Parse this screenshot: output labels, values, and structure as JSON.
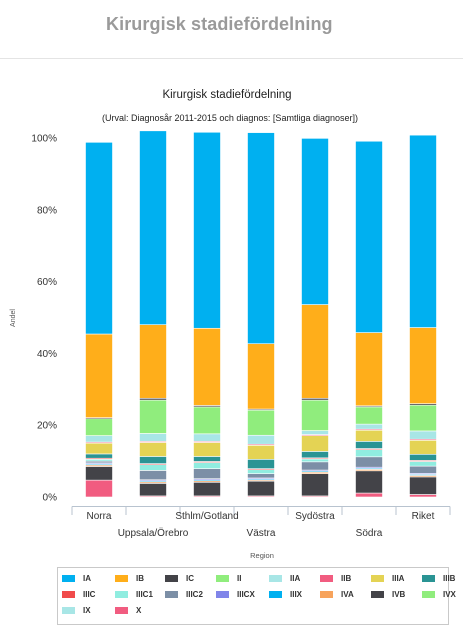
{
  "page": {
    "title": "Kirurgisk stadiefördelning"
  },
  "chart_data": {
    "type": "bar",
    "stacked": true,
    "title": "Kirurgisk stadiefördelning",
    "subtitle": "(Urval: Diagnosår 2011-2015 och diagnos: [Samtliga diagnoser])",
    "xlabel": "Region",
    "ylabel": "Andel",
    "ylim": [
      0,
      100
    ],
    "yticks": [
      "0%",
      "20%",
      "40%",
      "60%",
      "80%",
      "100%"
    ],
    "grid": false,
    "legend_position": "bottom",
    "categories": [
      "Norra",
      "Uppsala/Örebro",
      "Sthlm/Gotland",
      "Västra",
      "Sydöstra",
      "Södra",
      "Riket"
    ],
    "series": [
      {
        "name": "X",
        "color": "#f15c80",
        "values": [
          4.7,
          0.3,
          0.3,
          0.3,
          0.3,
          1.1,
          0.7
        ]
      },
      {
        "name": "IVB",
        "color": "#434348",
        "values": [
          3.8,
          3.5,
          3.8,
          4.1,
          6.2,
          6.2,
          4.9
        ]
      },
      {
        "name": "IVA",
        "color": "#f7a35c",
        "values": [
          0.4,
          0.4,
          0.4,
          0.3,
          0.4,
          0.4,
          0.4
        ]
      },
      {
        "name": "IIIX",
        "color": "#00b0f0",
        "values": [
          0.3,
          0.3,
          0.3,
          0.3,
          0.3,
          0.3,
          0.3
        ]
      },
      {
        "name": "IIICX",
        "color": "#8085e9",
        "values": [
          0.3,
          0.3,
          0.3,
          0.3,
          0.3,
          0.3,
          0.3
        ]
      },
      {
        "name": "IIIC2",
        "color": "#7c8fa6",
        "values": [
          0.5,
          2.6,
          2.8,
          1.2,
          2.3,
          2.9,
          2.0
        ]
      },
      {
        "name": "IIIC1",
        "color": "#90ede0",
        "values": [
          0.5,
          1.6,
          1.7,
          1.1,
          0.8,
          2.0,
          1.3
        ]
      },
      {
        "name": "IIIC",
        "color": "#f04b4b",
        "values": [
          0.3,
          0.3,
          0.3,
          0.3,
          0.3,
          0.3,
          0.3
        ]
      },
      {
        "name": "IIIB",
        "color": "#2a9494",
        "values": [
          1.2,
          2.0,
          1.4,
          2.6,
          1.8,
          2.0,
          1.7
        ]
      },
      {
        "name": "IIIA",
        "color": "#e4d354",
        "values": [
          3.0,
          3.9,
          3.9,
          3.9,
          4.4,
          3.1,
          3.9
        ]
      },
      {
        "name": "IIB",
        "color": "#f15c80",
        "values": [
          0.3,
          0.3,
          0.3,
          0.3,
          0.3,
          0.3,
          0.3
        ]
      },
      {
        "name": "IIA",
        "color": "#a8e6e6",
        "values": [
          1.8,
          2.2,
          2.1,
          2.5,
          1.1,
          1.4,
          2.3
        ]
      },
      {
        "name": "II",
        "color": "#90ed7d",
        "values": [
          4.7,
          9.3,
          7.5,
          7.0,
          8.5,
          4.8,
          7.2
        ]
      },
      {
        "name": "IC",
        "color": "#434348",
        "values": [
          0.3,
          0.5,
          0.4,
          0.3,
          0.5,
          0.3,
          0.4
        ]
      },
      {
        "name": "IB",
        "color": "#ffae1a",
        "values": [
          23.3,
          20.5,
          21.5,
          18.2,
          26.1,
          20.4,
          21.2
        ]
      },
      {
        "name": "IA",
        "color": "#00b0f0",
        "values": [
          53.4,
          54.0,
          54.6,
          58.8,
          46.3,
          53.3,
          53.6
        ]
      }
    ]
  },
  "legend": {
    "items": [
      {
        "label": "IA",
        "color": "#00b0f0"
      },
      {
        "label": "IB",
        "color": "#ffae1a"
      },
      {
        "label": "IC",
        "color": "#434348"
      },
      {
        "label": "II",
        "color": "#90ed7d"
      },
      {
        "label": "IIA",
        "color": "#a8e6e6"
      },
      {
        "label": "IIB",
        "color": "#f15c80"
      },
      {
        "label": "IIIA",
        "color": "#e4d354"
      },
      {
        "label": "IIIB",
        "color": "#2a9494"
      },
      {
        "label": "IIIC",
        "color": "#f04b4b"
      },
      {
        "label": "IIIC1",
        "color": "#90ede0"
      },
      {
        "label": "IIIC2",
        "color": "#7c8fa6"
      },
      {
        "label": "IIICX",
        "color": "#8085e9"
      },
      {
        "label": "IIIX",
        "color": "#00b0f0"
      },
      {
        "label": "IVA",
        "color": "#f7a35c"
      },
      {
        "label": "IVB",
        "color": "#434348"
      },
      {
        "label": "IVX",
        "color": "#90ed7d"
      },
      {
        "label": "IX",
        "color": "#a8e6e6"
      },
      {
        "label": "X",
        "color": "#f15c80"
      }
    ]
  }
}
